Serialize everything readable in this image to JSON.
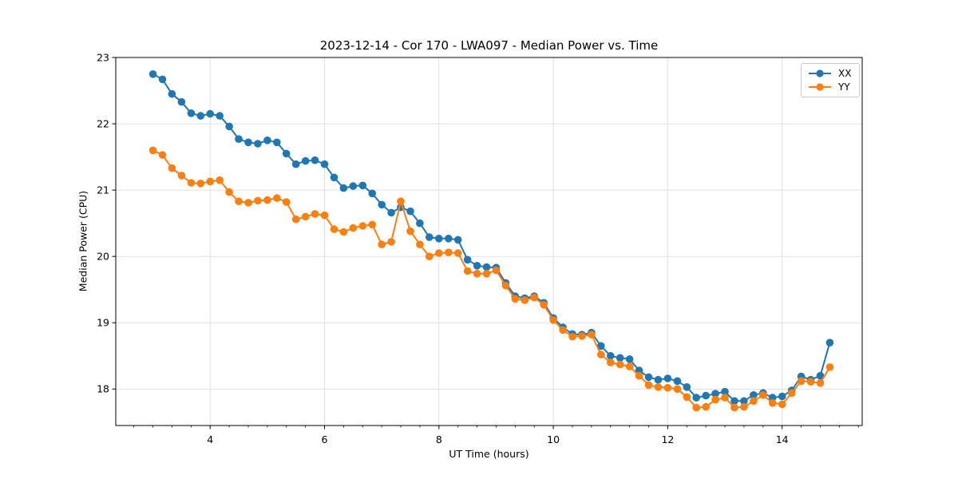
{
  "chart_data": {
    "type": "line",
    "title": "2023-12-14 - Cor 170 - LWA097 - Median Power vs. Time",
    "xlabel": "UT Time (hours)",
    "ylabel": "Median Power (CPU)",
    "xlim": [
      2.35,
      15.4
    ],
    "ylim": [
      17.45,
      23.0
    ],
    "x_ticks": [
      4,
      6,
      8,
      10,
      12,
      14
    ],
    "y_ticks": [
      18,
      19,
      20,
      21,
      22,
      23
    ],
    "x_minor_tick_step": 0.3333333,
    "grid": true,
    "legend_position": "upper right",
    "marker": "o",
    "x": [
      3.0,
      3.167,
      3.333,
      3.5,
      3.667,
      3.833,
      4.0,
      4.167,
      4.333,
      4.5,
      4.667,
      4.833,
      5.0,
      5.167,
      5.333,
      5.5,
      5.667,
      5.833,
      6.0,
      6.167,
      6.333,
      6.5,
      6.667,
      6.833,
      7.0,
      7.167,
      7.333,
      7.5,
      7.667,
      7.833,
      8.0,
      8.167,
      8.333,
      8.5,
      8.667,
      8.833,
      9.0,
      9.167,
      9.333,
      9.5,
      9.667,
      9.833,
      10.0,
      10.167,
      10.333,
      10.5,
      10.667,
      10.833,
      11.0,
      11.167,
      11.333,
      11.5,
      11.667,
      11.833,
      12.0,
      12.167,
      12.333,
      12.5,
      12.667,
      12.833,
      13.0,
      13.167,
      13.333,
      13.5,
      13.667,
      13.833,
      14.0,
      14.167,
      14.333,
      14.5,
      14.667,
      14.833
    ],
    "series": [
      {
        "name": "XX",
        "color": "#1f77b4",
        "values": [
          22.75,
          22.67,
          22.45,
          22.33,
          22.16,
          22.12,
          22.15,
          22.12,
          21.96,
          21.77,
          21.72,
          21.7,
          21.75,
          21.72,
          21.55,
          21.39,
          21.44,
          21.45,
          21.39,
          21.19,
          21.03,
          21.06,
          21.07,
          20.95,
          20.78,
          20.66,
          20.74,
          20.68,
          20.5,
          20.29,
          20.27,
          20.27,
          20.25,
          19.95,
          19.86,
          19.84,
          19.83,
          19.6,
          19.4,
          19.37,
          19.4,
          19.3,
          19.07,
          18.93,
          18.83,
          18.82,
          18.85,
          18.65,
          18.5,
          18.47,
          18.45,
          18.28,
          18.18,
          18.14,
          18.16,
          18.12,
          18.03,
          17.87,
          17.9,
          17.93,
          17.96,
          17.82,
          17.82,
          17.91,
          17.94,
          17.87,
          17.89,
          17.98,
          18.19,
          18.14,
          18.2,
          18.7
        ]
      },
      {
        "name": "YY",
        "color": "#ff7f0e",
        "values": [
          21.6,
          21.53,
          21.33,
          21.22,
          21.11,
          21.1,
          21.13,
          21.15,
          20.97,
          20.83,
          20.81,
          20.84,
          20.85,
          20.88,
          20.82,
          20.56,
          20.6,
          20.64,
          20.62,
          20.41,
          20.37,
          20.43,
          20.46,
          20.48,
          20.18,
          20.22,
          20.83,
          20.38,
          20.18,
          20.0,
          20.05,
          20.06,
          20.05,
          19.78,
          19.74,
          19.74,
          19.79,
          19.56,
          19.36,
          19.34,
          19.38,
          19.27,
          19.04,
          18.89,
          18.79,
          18.8,
          18.82,
          18.52,
          18.4,
          18.37,
          18.34,
          18.2,
          18.06,
          18.03,
          18.02,
          18.0,
          17.88,
          17.72,
          17.73,
          17.84,
          17.87,
          17.72,
          17.73,
          17.82,
          17.91,
          17.79,
          17.77,
          17.94,
          18.12,
          18.11,
          18.09,
          18.33
        ]
      }
    ]
  },
  "style": {
    "grid_color": "#e0e0e0",
    "axis_color": "#000000",
    "background": "#ffffff"
  }
}
